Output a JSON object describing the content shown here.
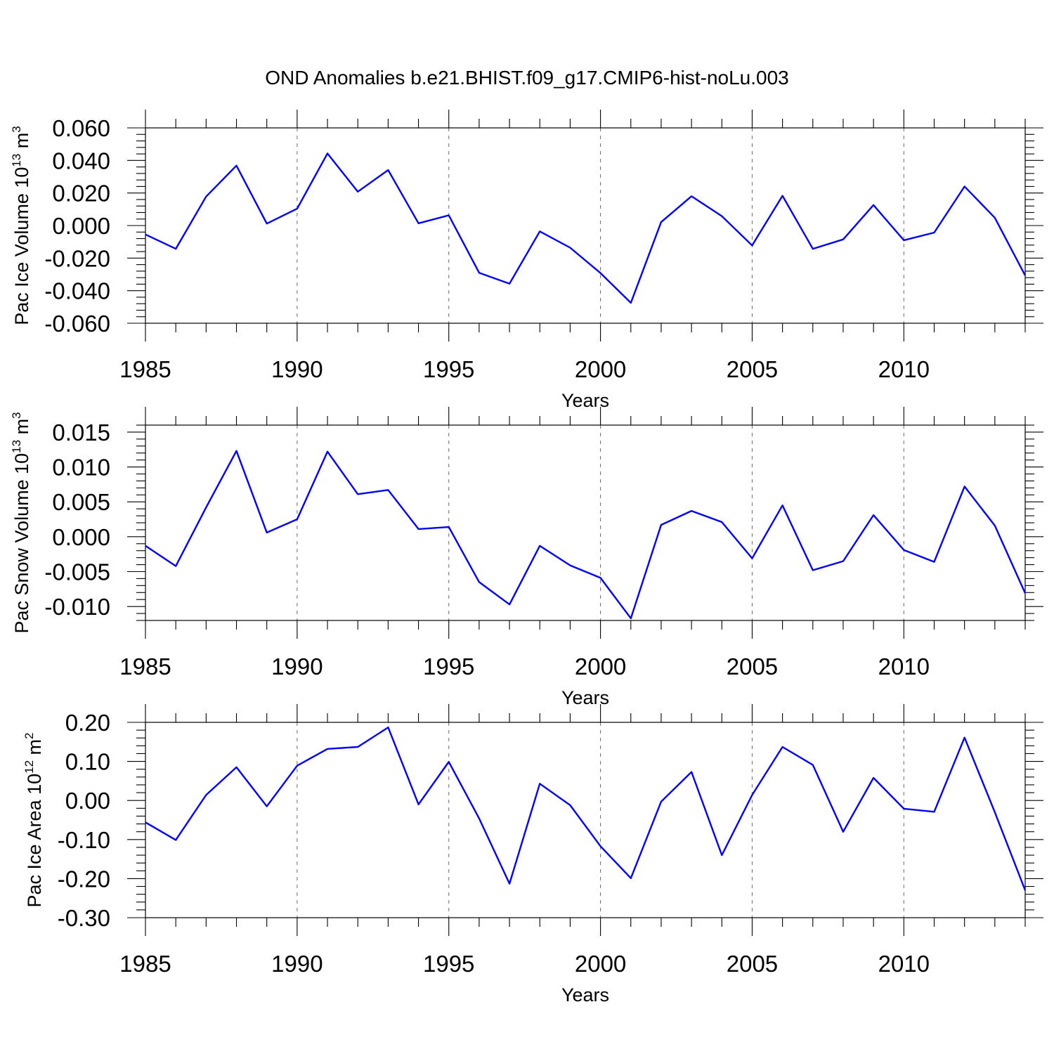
{
  "title": "OND Anomalies b.e21.BHIST.f09_g17.CMIP6-hist-noLu.003",
  "colors": {
    "line": "#0000ff",
    "grid": "#777777"
  },
  "chart_data": [
    {
      "type": "line",
      "ylabel": "Pac Ice Volume 10",
      "ylabel_exp": "13",
      "ylabel_unit": " m",
      "ylabel_unit_exp": "3",
      "xlabel": "Years",
      "xlim": [
        1985,
        2014
      ],
      "ylim": [
        -0.06,
        0.06
      ],
      "xticks": [
        "1985",
        "1990",
        "1995",
        "2000",
        "2005",
        "2010"
      ],
      "yticks": [
        "0.060",
        "0.040",
        "0.020",
        "0.000",
        "-0.020",
        "-0.040",
        "-0.060"
      ],
      "grid": "vertical dashed at major x ticks",
      "x": [
        1985,
        1986,
        1987,
        1988,
        1989,
        1990,
        1991,
        1992,
        1993,
        1994,
        1995,
        1996,
        1997,
        1998,
        1999,
        2000,
        2001,
        2002,
        2003,
        2004,
        2005,
        2006,
        2007,
        2008,
        2009,
        2010,
        2011,
        2012,
        2013,
        2014
      ],
      "values": [
        -0.0055,
        -0.0143,
        0.0178,
        0.0368,
        0.0012,
        0.0104,
        0.0443,
        0.0208,
        0.0341,
        0.0014,
        0.0063,
        -0.029,
        -0.0357,
        -0.0036,
        -0.0136,
        -0.0292,
        -0.0475,
        0.0021,
        0.018,
        0.0058,
        -0.0122,
        0.0183,
        -0.0143,
        -0.0085,
        0.0126,
        -0.009,
        -0.0043,
        0.024,
        0.0048,
        -0.0307
      ]
    },
    {
      "type": "line",
      "ylabel": "Pac Snow Volume 10",
      "ylabel_exp": "13",
      "ylabel_unit": " m",
      "ylabel_unit_exp": "3",
      "xlabel": "Years",
      "xlim": [
        1985,
        2014
      ],
      "ylim": [
        -0.012,
        0.016
      ],
      "xticks": [
        "1985",
        "1990",
        "1995",
        "2000",
        "2005",
        "2010"
      ],
      "yticks": [
        "0.015",
        "0.010",
        "0.005",
        "0.000",
        "-0.005",
        "-0.010"
      ],
      "grid": "vertical dashed at major x ticks",
      "x": [
        1985,
        1986,
        1987,
        1988,
        1989,
        1990,
        1991,
        1992,
        1993,
        1994,
        1995,
        1996,
        1997,
        1998,
        1999,
        2000,
        2001,
        2002,
        2003,
        2004,
        2005,
        2006,
        2007,
        2008,
        2009,
        2010,
        2011,
        2012,
        2013,
        2014
      ],
      "values": [
        -0.0013,
        -0.0042,
        0.0042,
        0.0123,
        0.0006,
        0.0025,
        0.0122,
        0.0061,
        0.0067,
        0.0011,
        0.0014,
        -0.0065,
        -0.0097,
        -0.0013,
        -0.0041,
        -0.0059,
        -0.0117,
        0.0017,
        0.0037,
        0.0021,
        -0.0031,
        0.0045,
        -0.0048,
        -0.0035,
        0.0031,
        -0.0019,
        -0.0036,
        0.0072,
        0.0016,
        -0.0081
      ]
    },
    {
      "type": "line",
      "ylabel": "Pac Ice Area 10",
      "ylabel_exp": "12",
      "ylabel_unit": " m",
      "ylabel_unit_exp": "2",
      "xlabel": "Years",
      "xlim": [
        1985,
        2014
      ],
      "ylim": [
        -0.3,
        0.2
      ],
      "xticks": [
        "1985",
        "1990",
        "1995",
        "2000",
        "2005",
        "2010"
      ],
      "yticks": [
        "0.20",
        "0.10",
        "0.00",
        "-0.10",
        "-0.20",
        "-0.30"
      ],
      "grid": "vertical dashed at major x ticks",
      "x": [
        1985,
        1986,
        1987,
        1988,
        1989,
        1990,
        1991,
        1992,
        1993,
        1994,
        1995,
        1996,
        1997,
        1998,
        1999,
        2000,
        2001,
        2002,
        2003,
        2004,
        2005,
        2006,
        2007,
        2008,
        2009,
        2010,
        2011,
        2012,
        2013,
        2014
      ],
      "values": [
        -0.056,
        -0.101,
        0.014,
        0.085,
        -0.015,
        0.089,
        0.132,
        0.137,
        0.187,
        -0.01,
        0.099,
        -0.046,
        -0.213,
        0.043,
        -0.012,
        -0.117,
        -0.199,
        -0.003,
        0.073,
        -0.14,
        0.014,
        0.137,
        0.091,
        -0.08,
        0.058,
        -0.021,
        -0.029,
        0.161,
        -0.03,
        -0.23
      ]
    }
  ]
}
